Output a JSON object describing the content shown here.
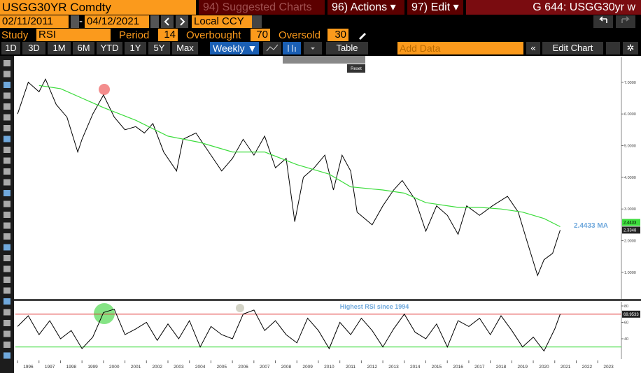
{
  "toolbar": {
    "ticker": "USGG30YR Comdty",
    "suggested": "94) Suggested Charts",
    "actions": "96) Actions ▾",
    "edit": "97) Edit ▾",
    "chart_id": "G 644: USGG30yr w"
  },
  "range": {
    "start": "02/11/2011",
    "separator": "-",
    "end": "04/12/2021",
    "currency": "Local CCY"
  },
  "study": {
    "label": "Study",
    "name": "RSI",
    "period_label": "Period",
    "period": 14,
    "overbought_label": "Overbought",
    "overbought": 70,
    "oversold_label": "Oversold",
    "oversold": 30
  },
  "periods": [
    "1D",
    "3D",
    "1M",
    "6M",
    "YTD",
    "1Y",
    "5Y",
    "Max"
  ],
  "frequency": "Weekly ▼",
  "table": "Table",
  "add_data": "Add Data",
  "edit_chart": "Edit Chart",
  "reset": "Reset",
  "chart_data": [
    {
      "type": "line",
      "xlim": [
        1995.9,
        2024.1
      ],
      "ylim": [
        0.16,
        7.79
      ],
      "yticks": [
        {
          "value": 1,
          "label": "1.0000"
        },
        {
          "value": 2,
          "label": "2.0000"
        },
        {
          "value": 3,
          "label": "3.0000"
        },
        {
          "value": 4,
          "label": "4.0000"
        },
        {
          "value": 5,
          "label": "5.0000"
        },
        {
          "value": 6,
          "label": "6.0000"
        },
        {
          "value": 7,
          "label": "7.0000"
        }
      ],
      "annotation": "2.4433 MA",
      "series": [
        {
          "name": "USGG30YR",
          "color": "#000000",
          "x": [
            1996.0,
            1996.5,
            1997.0,
            1997.3,
            1997.8,
            1998.3,
            1998.8,
            1999.0,
            1999.5,
            2000.0,
            2000.5,
            2001.0,
            2001.5,
            2001.9,
            2002.3,
            2002.8,
            2003.4,
            2003.7,
            2004.3,
            2004.9,
            2005.5,
            2006.0,
            2006.5,
            2007.0,
            2007.5,
            2008.0,
            2008.5,
            2008.9,
            2009.3,
            2009.8,
            2010.3,
            2010.7,
            2011.1,
            2011.5,
            2011.8,
            2012.5,
            2013.0,
            2013.5,
            2013.9,
            2014.5,
            2015.0,
            2015.5,
            2016.0,
            2016.5,
            2016.9,
            2017.5,
            2018.1,
            2018.8,
            2019.3,
            2019.7,
            2020.2,
            2020.5,
            2020.9,
            2021.25
          ],
          "values": [
            6.0,
            7.0,
            6.7,
            7.1,
            6.3,
            5.9,
            4.8,
            5.2,
            6.0,
            6.6,
            5.9,
            5.5,
            5.6,
            5.4,
            5.7,
            4.8,
            4.2,
            5.2,
            5.4,
            4.8,
            4.2,
            4.6,
            5.2,
            4.7,
            5.3,
            4.3,
            4.6,
            2.6,
            4.0,
            4.3,
            4.7,
            3.6,
            4.7,
            4.2,
            2.9,
            2.5,
            3.1,
            3.6,
            3.9,
            3.3,
            2.3,
            3.1,
            2.8,
            2.2,
            3.1,
            2.8,
            3.1,
            3.4,
            2.9,
            2.0,
            0.9,
            1.4,
            1.6,
            2.3348
          ],
          "tag_color": "#ffffff"
        },
        {
          "name": "MA",
          "color": "#3cdc3c",
          "x": [
            1997.0,
            1998.0,
            1999.0,
            2000.0,
            2001.5,
            2003.0,
            2004.5,
            2006.0,
            2007.5,
            2009.0,
            2010.5,
            2011.5,
            2013.0,
            2014.0,
            2015.0,
            2016.5,
            2017.5,
            2018.5,
            2019.5,
            2020.5,
            2021.25
          ],
          "values": [
            6.9,
            6.8,
            6.5,
            6.2,
            5.8,
            5.3,
            5.1,
            4.8,
            4.8,
            4.4,
            4.1,
            3.7,
            3.6,
            3.5,
            3.2,
            3.05,
            3.05,
            3.0,
            2.9,
            2.7,
            2.4433
          ],
          "tag_color": "#3cdc3c"
        }
      ]
    },
    {
      "type": "line",
      "xlim": [
        1995.9,
        2024.1
      ],
      "ylim": [
        15.3,
        85.1
      ],
      "yticks": [
        40,
        60,
        80
      ],
      "annotation": "Highest RSI since 1994",
      "overbought_color": "#e03030",
      "oversold_color": "#3cdc3c",
      "xticks": [
        {
          "value": 1996.5,
          "label": "1996"
        },
        {
          "value": 1997.5,
          "label": "1997"
        },
        {
          "value": 1998.5,
          "label": "1998"
        },
        {
          "value": 1999.5,
          "label": "1999"
        },
        {
          "value": 2000.5,
          "label": "2000"
        },
        {
          "value": 2001.5,
          "label": "2001"
        },
        {
          "value": 2002.5,
          "label": "2002"
        },
        {
          "value": 2003.5,
          "label": "2003"
        },
        {
          "value": 2004.5,
          "label": "2004"
        },
        {
          "value": 2005.5,
          "label": "2005"
        },
        {
          "value": 2006.5,
          "label": "2006"
        },
        {
          "value": 2007.5,
          "label": "2007"
        },
        {
          "value": 2008.5,
          "label": "2008"
        },
        {
          "value": 2009.5,
          "label": "2009"
        },
        {
          "value": 2010.5,
          "label": "2010"
        },
        {
          "value": 2011.5,
          "label": "2011"
        },
        {
          "value": 2012.5,
          "label": "2012"
        },
        {
          "value": 2013.5,
          "label": "2013"
        },
        {
          "value": 2014.5,
          "label": "2014"
        },
        {
          "value": 2015.5,
          "label": "2015"
        },
        {
          "value": 2016.5,
          "label": "2016"
        },
        {
          "value": 2017.5,
          "label": "2017"
        },
        {
          "value": 2018.5,
          "label": "2018"
        },
        {
          "value": 2019.5,
          "label": "2019"
        },
        {
          "value": 2020.5,
          "label": "2020"
        },
        {
          "value": 2021.5,
          "label": "2021"
        },
        {
          "value": 2022.5,
          "label": "2022"
        },
        {
          "value": 2023.5,
          "label": "2023"
        }
      ],
      "series": [
        {
          "name": "RSI",
          "color": "#000000",
          "x": [
            1996.0,
            1996.5,
            1997.0,
            1997.5,
            1998.0,
            1998.5,
            1999.0,
            1999.5,
            2000.0,
            2000.5,
            2001.0,
            2001.5,
            2002.0,
            2002.5,
            2003.0,
            2003.5,
            2004.0,
            2004.5,
            2005.0,
            2005.5,
            2006.0,
            2006.5,
            2007.0,
            2007.5,
            2008.0,
            2008.5,
            2009.0,
            2009.5,
            2010.0,
            2010.5,
            2011.0,
            2011.5,
            2012.0,
            2012.5,
            2013.0,
            2013.5,
            2014.0,
            2014.5,
            2015.0,
            2015.5,
            2016.0,
            2016.5,
            2017.0,
            2017.5,
            2018.0,
            2018.5,
            2019.0,
            2019.5,
            2020.0,
            2020.5,
            2021.0,
            2021.25
          ],
          "values": [
            55,
            68,
            45,
            62,
            40,
            50,
            28,
            42,
            72,
            76,
            45,
            52,
            60,
            38,
            58,
            40,
            62,
            30,
            55,
            45,
            40,
            70,
            75,
            50,
            62,
            45,
            35,
            65,
            50,
            28,
            60,
            45,
            65,
            50,
            30,
            52,
            70,
            48,
            40,
            58,
            30,
            62,
            55,
            65,
            45,
            68,
            50,
            30,
            42,
            25,
            52,
            69.9533
          ],
          "tag_color": "#ffffff"
        }
      ]
    }
  ]
}
